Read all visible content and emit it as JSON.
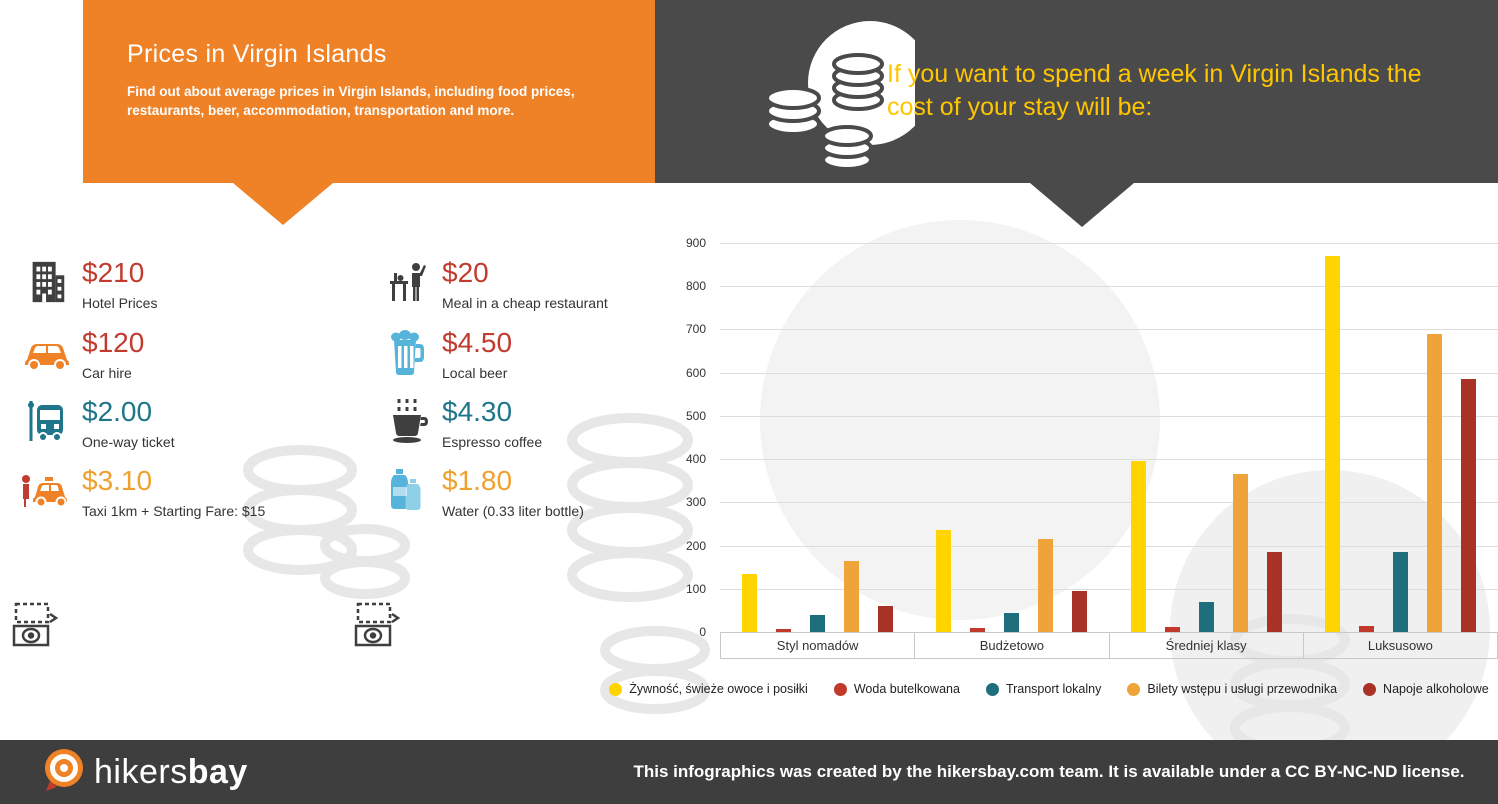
{
  "header": {
    "title": "Prices in Virgin Islands",
    "subtitle": "Find out about average prices in Virgin Islands, including food prices, restaurants, beer, accommodation, transportation and more.",
    "right_title": "If you want to spend a week in Virgin Islands the cost of your stay will be:",
    "colors": {
      "orange": "#EF8227",
      "dark": "#4A4A4A",
      "yellow_text": "#FFC600"
    }
  },
  "prices": {
    "column1": [
      {
        "amount": "$210",
        "label": "Hotel Prices",
        "color": "#C13B2E",
        "icon": "hotel-icon"
      },
      {
        "amount": "$120",
        "label": "Car hire",
        "color": "#C13B2E",
        "icon": "car-icon"
      },
      {
        "amount": "$2.00",
        "label": "One-way ticket",
        "color": "#1F7589",
        "icon": "bus-icon"
      },
      {
        "amount": "$3.10",
        "label": "Taxi 1km + Starting Fare: $15",
        "color": "#EFA02E",
        "icon": "taxi-icon"
      }
    ],
    "column2": [
      {
        "amount": "$20",
        "label": "Meal in a cheap restaurant",
        "color": "#C13B2E",
        "icon": "restaurant-icon"
      },
      {
        "amount": "$4.50",
        "label": "Local beer",
        "color": "#C13B2E",
        "icon": "beer-icon"
      },
      {
        "amount": "$4.30",
        "label": "Espresso coffee",
        "color": "#1F7589",
        "icon": "coffee-icon"
      },
      {
        "amount": "$1.80",
        "label": "Water (0.33 liter bottle)",
        "color": "#EFA02E",
        "icon": "water-icon"
      }
    ]
  },
  "chart_data": {
    "type": "bar",
    "categories": [
      "Styl nomadów",
      "Budżetowo",
      "Średniej klasy",
      "Luksusowo"
    ],
    "series": [
      {
        "name": "Żywność, świeże owoce i posiłki",
        "color": "#FFD400",
        "values": [
          135,
          235,
          395,
          870
        ]
      },
      {
        "name": "Woda butelkowana",
        "color": "#C0392B",
        "values": [
          8,
          10,
          12,
          15
        ]
      },
      {
        "name": "Transport lokalny",
        "color": "#1F6E7E",
        "values": [
          40,
          45,
          70,
          185
        ]
      },
      {
        "name": "Bilety wstępu i usługi przewodnika",
        "color": "#EFA43A",
        "values": [
          165,
          215,
          365,
          690
        ]
      },
      {
        "name": "Napoje alkoholowe",
        "color": "#A93226",
        "values": [
          60,
          95,
          185,
          585
        ]
      }
    ],
    "title": "",
    "xlabel": "",
    "ylabel": "",
    "ylim": [
      0,
      900
    ],
    "ytick_step": 100,
    "grid": true,
    "legend_position": "bottom"
  },
  "footer": {
    "logo_regular": "hikers",
    "logo_bold": "bay",
    "credit": "This infographics was created by the hikersbay.com team. It is available under a CC BY-NC-ND license."
  }
}
